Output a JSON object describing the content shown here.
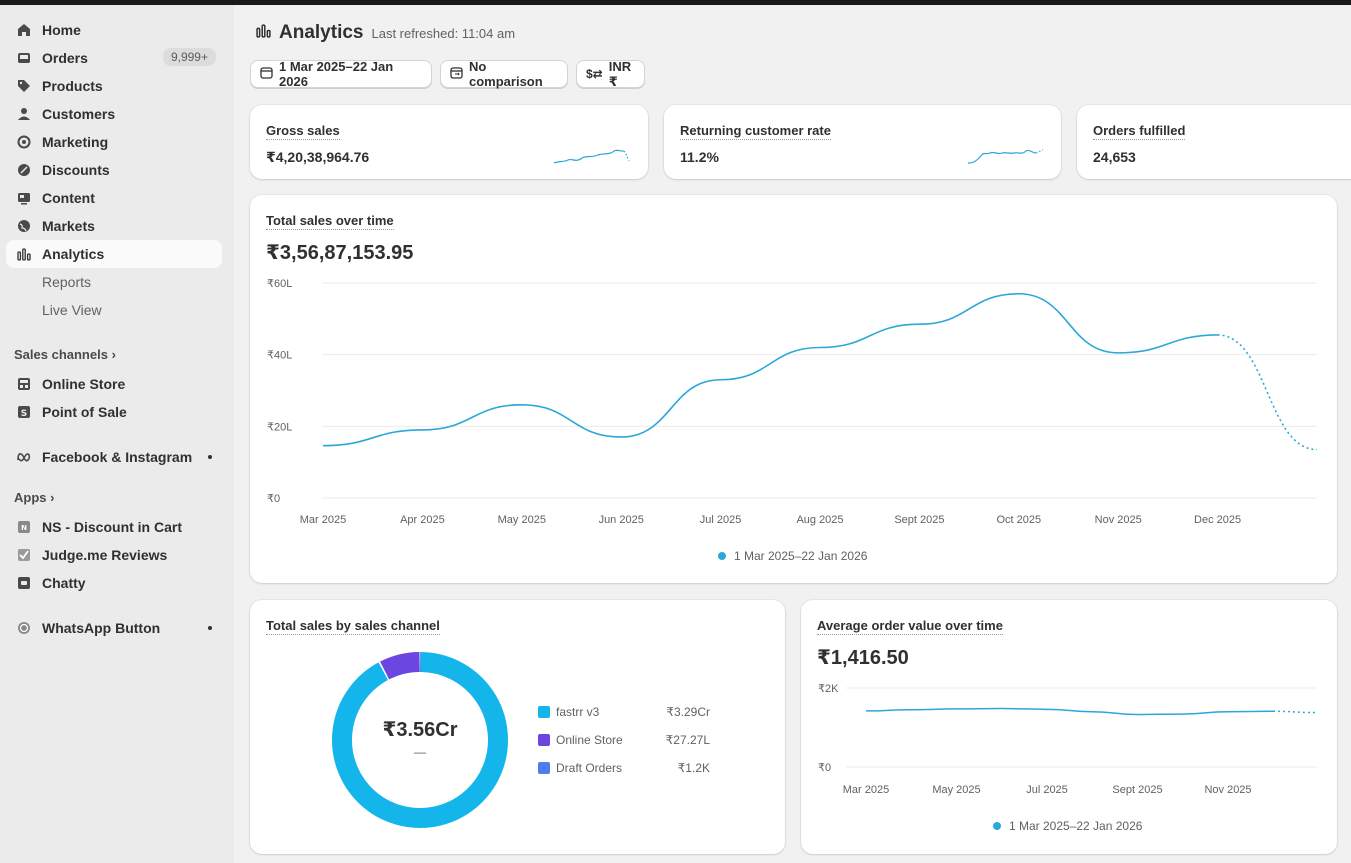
{
  "sidebar": {
    "items": [
      {
        "label": "Home",
        "icon": "home-icon"
      },
      {
        "label": "Orders",
        "icon": "inbox-icon",
        "badge": "9,999+"
      },
      {
        "label": "Products",
        "icon": "tag-icon"
      },
      {
        "label": "Customers",
        "icon": "person-icon"
      },
      {
        "label": "Marketing",
        "icon": "target-icon"
      },
      {
        "label": "Discounts",
        "icon": "discount-icon"
      },
      {
        "label": "Content",
        "icon": "content-icon"
      },
      {
        "label": "Markets",
        "icon": "globe-icon"
      },
      {
        "label": "Analytics",
        "icon": "bar-chart-icon",
        "active": true
      }
    ],
    "analytics_sub": [
      "Reports",
      "Live View"
    ],
    "sales_channels_label": "Sales channels",
    "sales_channels": [
      {
        "label": "Online Store",
        "icon": "store-icon"
      },
      {
        "label": "Point of Sale",
        "icon": "pos-icon"
      }
    ],
    "facebook": {
      "label": "Facebook & Instagram",
      "icon": "meta-icon"
    },
    "apps_label": "Apps",
    "apps": [
      {
        "label": "NS - Discount in Cart",
        "icon": "app-icon"
      },
      {
        "label": "Judge.me Reviews",
        "icon": "check-icon"
      },
      {
        "label": "Chatty",
        "icon": "chat-icon"
      }
    ],
    "whatsapp": {
      "label": "WhatsApp Button",
      "icon": "whatsapp-icon"
    }
  },
  "header": {
    "title": "Analytics",
    "subtitle": "Last refreshed: 11:04 am",
    "date_range": "1 Mar 2025–22 Jan 2026",
    "comparison": "No comparison",
    "currency": "INR ₹"
  },
  "kpis": [
    {
      "label": "Gross sales",
      "value": "₹4,20,38,964.76",
      "sparkline": [
        3,
        4,
        3,
        5,
        4,
        5,
        6,
        5,
        6,
        7,
        6,
        7,
        6,
        4
      ]
    },
    {
      "label": "Returning customer rate",
      "value": "11.2%",
      "sparkline": [
        2,
        2,
        3,
        6,
        5,
        6,
        5,
        6,
        6,
        5,
        6,
        5,
        6,
        6
      ]
    },
    {
      "label": "Orders fulfilled",
      "value": "24,653"
    }
  ],
  "total_sales": {
    "label": "Total sales over time",
    "value": "₹3,56,87,153.95",
    "legend": "1 Mar 2025–22 Jan 2026",
    "color": "#2ba7d9",
    "chart_data": {
      "type": "line",
      "y_ticks": [
        "₹60L",
        "₹40L",
        "₹20L",
        "₹0"
      ],
      "x_ticks": [
        "Mar 2025",
        "Apr 2025",
        "May 2025",
        "Jun 2025",
        "Jul 2025",
        "Aug 2025",
        "Sept 2025",
        "Oct 2025",
        "Nov 2025",
        "Dec 2025"
      ],
      "ylim": [
        0,
        60
      ],
      "x": [
        "Mar 2025",
        "Apr 2025",
        "May 2025",
        "Jun 2025",
        "Jul 2025",
        "Aug 2025",
        "Sept 2025",
        "Oct 2025",
        "Nov 2025",
        "Dec 2025"
      ],
      "values": [
        14.6,
        19,
        26,
        17,
        33,
        42,
        48.5,
        57,
        40.5,
        45.5
      ],
      "projected_end": 13.5
    }
  },
  "by_channel": {
    "label": "Total sales by sales channel",
    "center_value": "₹3.56Cr",
    "center_sub": "—",
    "chart_data": {
      "type": "pie",
      "labels": [
        "fastrr v3",
        "Online Store",
        "Draft Orders"
      ],
      "values": [
        3.29,
        0.2727,
        1.2e-05
      ],
      "display": [
        "₹3.29Cr",
        "₹27.27L",
        "₹1.2K"
      ],
      "colors": [
        "#13b5ea",
        "#6b46e0",
        "#4f7ee8"
      ]
    }
  },
  "aov": {
    "label": "Average order value over time",
    "value": "₹1,416.50",
    "legend": "1 Mar 2025–22 Jan 2026",
    "chart_data": {
      "type": "line",
      "y_ticks": [
        "₹2K",
        "₹0"
      ],
      "x_ticks": [
        "Mar 2025",
        "May 2025",
        "Jul 2025",
        "Sept 2025",
        "Nov 2025"
      ],
      "ylim": [
        0,
        2000
      ],
      "values": [
        1420,
        1450,
        1470,
        1480,
        1460,
        1400,
        1330,
        1340,
        1400,
        1410
      ],
      "projected_end": 1380
    }
  }
}
